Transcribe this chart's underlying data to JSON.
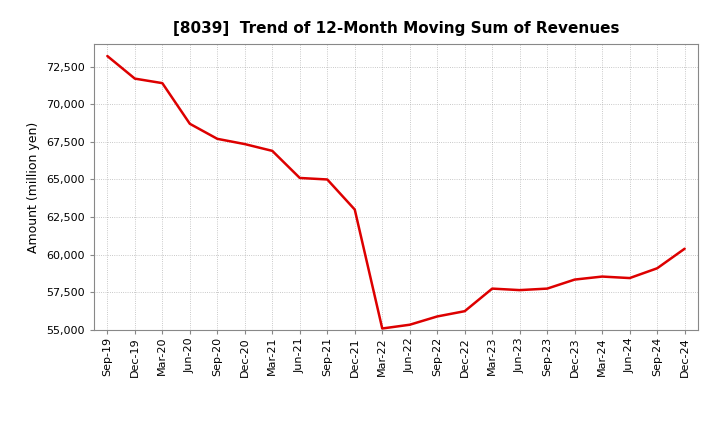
{
  "title": "[8039]  Trend of 12-Month Moving Sum of Revenues",
  "ylabel": "Amount (million yen)",
  "line_color": "#dd0000",
  "background_color": "#ffffff",
  "plot_bg_color": "#ffffff",
  "grid_color": "#999999",
  "ylim": [
    55000,
    74000
  ],
  "yticks": [
    55000,
    57500,
    60000,
    62500,
    65000,
    67500,
    70000,
    72500
  ],
  "x_labels": [
    "Sep-19",
    "Dec-19",
    "Mar-20",
    "Jun-20",
    "Sep-20",
    "Dec-20",
    "Mar-21",
    "Jun-21",
    "Sep-21",
    "Dec-21",
    "Mar-22",
    "Jun-22",
    "Sep-22",
    "Dec-22",
    "Mar-23",
    "Jun-23",
    "Sep-23",
    "Dec-23",
    "Mar-24",
    "Jun-24",
    "Sep-24",
    "Dec-24"
  ],
  "y_values": [
    73200,
    71700,
    71400,
    68700,
    67700,
    67350,
    66900,
    65100,
    65000,
    63000,
    55100,
    55350,
    55900,
    56250,
    57750,
    57650,
    57750,
    58350,
    58550,
    58450,
    59100,
    60400
  ]
}
